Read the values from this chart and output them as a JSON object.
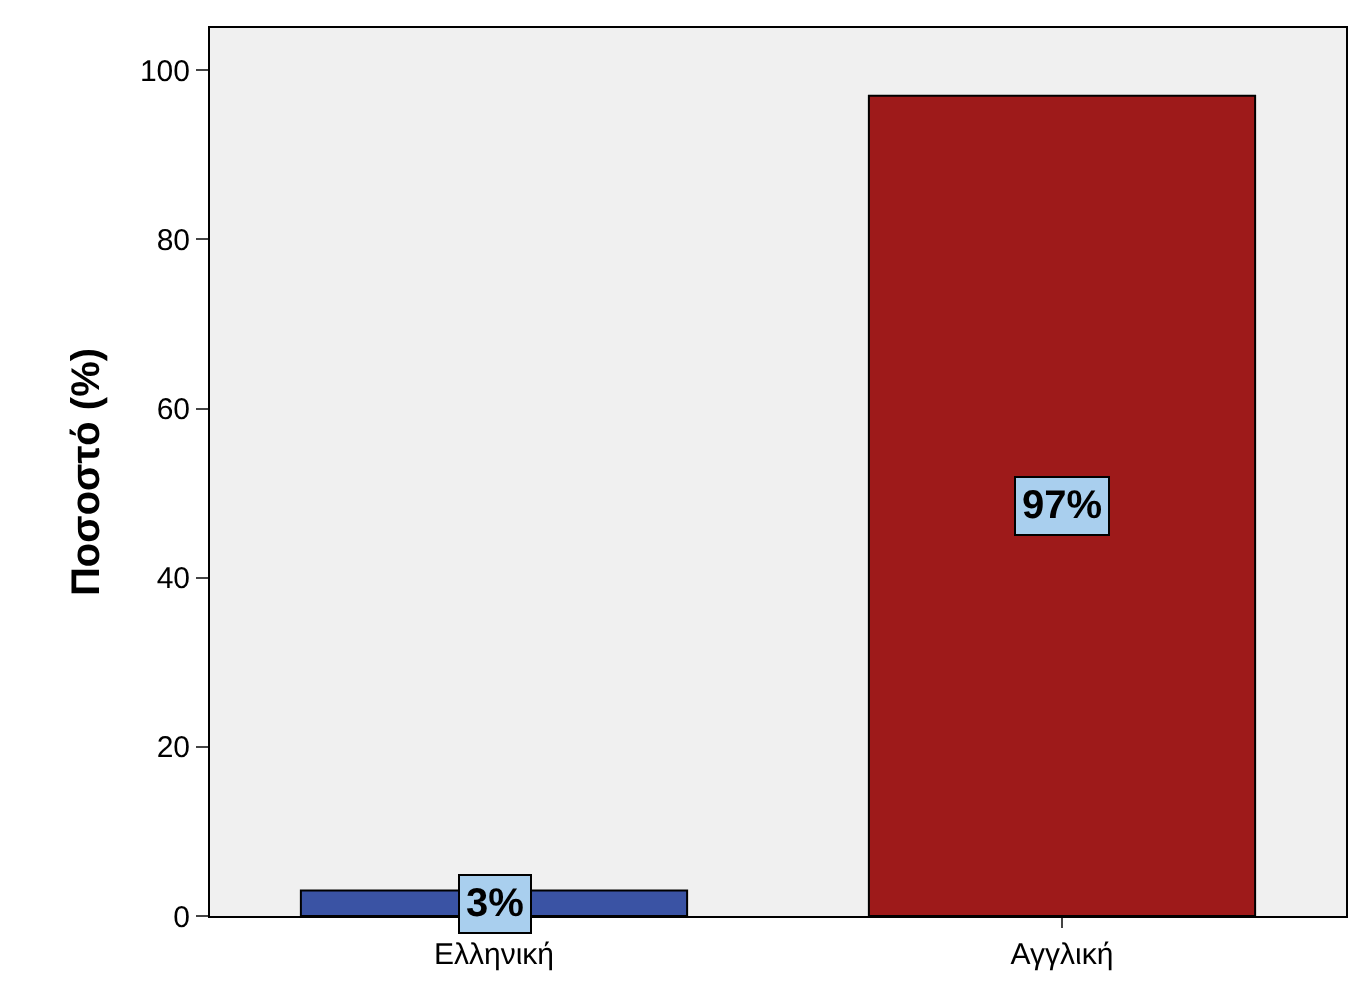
{
  "chart_data": {
    "type": "bar",
    "ylabel": "Ποσοστό (%)",
    "categories": [
      "Ελληνική",
      "Αγγλική"
    ],
    "values": [
      3,
      97
    ],
    "colors": [
      "#3a53a4",
      "#9e1a1a"
    ],
    "value_labels": [
      "3%",
      "97%"
    ],
    "ylim": [
      0,
      105
    ],
    "yticks": [
      0,
      20,
      40,
      60,
      80,
      100
    ],
    "grid": false
  }
}
